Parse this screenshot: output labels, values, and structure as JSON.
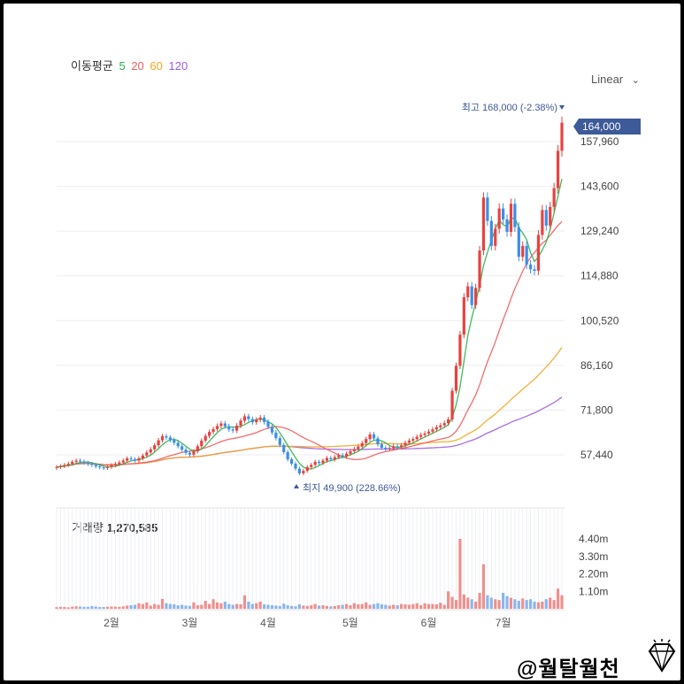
{
  "legend": {
    "label": "이동평균",
    "ma": [
      {
        "period": "5",
        "color": "#2bb24c"
      },
      {
        "period": "20",
        "color": "#f25c5c"
      },
      {
        "period": "60",
        "color": "#f5a623"
      },
      {
        "period": "120",
        "color": "#9b5de5"
      }
    ]
  },
  "scale_mode": "Linear",
  "high_label": "최고 168,000 (-2.38%)",
  "low_label": "최지 49,900 (228.66%)",
  "volume_title": {
    "label": "거래량",
    "value": "1,270,585"
  },
  "watermark": "@월탈월천",
  "colors": {
    "up": "#e8423f",
    "down": "#3b8ee8",
    "current": "#3d5a99"
  },
  "chart_data": {
    "type": "candlestick",
    "current_price": "164,000",
    "y_ticks": [
      "157,960",
      "143,600",
      "129,240",
      "114,880",
      "100,520",
      "86,160",
      "71,800",
      "57,440"
    ],
    "y_tick_values": [
      157960,
      143600,
      129240,
      114880,
      100520,
      86160,
      71800,
      57440
    ],
    "x_ticks": [
      {
        "label": "2월",
        "index": 14
      },
      {
        "label": "3월",
        "index": 34
      },
      {
        "label": "4월",
        "index": 54
      },
      {
        "label": "5월",
        "index": 75
      },
      {
        "label": "6월",
        "index": 95
      },
      {
        "label": "7월",
        "index": 114
      }
    ],
    "closes": [
      53500,
      53800,
      54200,
      54600,
      55200,
      55600,
      55300,
      54900,
      54500,
      54200,
      53700,
      53400,
      53200,
      53600,
      54100,
      54500,
      55000,
      55600,
      56300,
      56000,
      55600,
      56300,
      57200,
      58200,
      59200,
      60500,
      62100,
      63400,
      63000,
      62200,
      61300,
      60200,
      59100,
      58100,
      57500,
      58600,
      60200,
      62000,
      63500,
      64800,
      65700,
      66700,
      67500,
      66600,
      65600,
      65200,
      66800,
      68400,
      69800,
      68900,
      67900,
      68700,
      69400,
      68000,
      66400,
      64600,
      62800,
      60600,
      58300,
      56000,
      54600,
      53000,
      51500,
      52300,
      53500,
      54200,
      55200,
      54800,
      55600,
      56400,
      56000,
      56700,
      57300,
      56900,
      57800,
      58600,
      59300,
      60100,
      61200,
      62500,
      64000,
      62700,
      60800,
      59700,
      59300,
      59600,
      60200,
      59900,
      60500,
      61300,
      62000,
      62500,
      63200,
      63800,
      64300,
      64900,
      65600,
      66300,
      66900,
      67600,
      68800,
      78000,
      86000,
      96000,
      108000,
      111500,
      105500,
      111000,
      123000,
      140000,
      132500,
      124500,
      130000,
      136500,
      133000,
      129000,
      138000,
      130500,
      121000,
      124500,
      118500,
      117000,
      116500,
      128000,
      136000,
      131000,
      137000,
      143000,
      155000,
      164000
    ],
    "volume_m": [
      0.1,
      0.12,
      0.11,
      0.09,
      0.13,
      0.15,
      0.14,
      0.12,
      0.12,
      0.17,
      0.14,
      0.11,
      0.11,
      0.13,
      0.14,
      0.13,
      0.12,
      0.15,
      0.2,
      0.22,
      0.25,
      0.35,
      0.3,
      0.4,
      0.2,
      0.3,
      0.25,
      0.62,
      0.35,
      0.3,
      0.28,
      0.22,
      0.25,
      0.2,
      0.18,
      0.4,
      0.22,
      0.25,
      0.5,
      0.3,
      0.6,
      0.4,
      0.35,
      0.45,
      0.3,
      0.25,
      0.3,
      0.28,
      0.85,
      0.45,
      0.3,
      0.35,
      0.45,
      0.28,
      0.25,
      0.22,
      0.2,
      0.18,
      0.32,
      0.22,
      0.18,
      0.15,
      0.28,
      0.2,
      0.18,
      0.22,
      0.3,
      0.2,
      0.22,
      0.18,
      0.15,
      0.17,
      0.22,
      0.25,
      0.3,
      0.22,
      0.35,
      0.28,
      0.3,
      0.4,
      0.25,
      0.3,
      0.35,
      0.28,
      0.25,
      0.2,
      0.25,
      0.22,
      0.3,
      0.28,
      0.25,
      0.3,
      0.35,
      0.22,
      0.35,
      0.3,
      0.3,
      0.28,
      0.38,
      0.25,
      1.1,
      0.75,
      0.55,
      4.4,
      0.9,
      0.7,
      0.6,
      0.45,
      1.0,
      2.8,
      0.85,
      0.7,
      0.6,
      0.55,
      1.0,
      0.8,
      0.7,
      0.6,
      0.5,
      0.65,
      0.55,
      0.6,
      0.45,
      0.4,
      0.45,
      0.6,
      0.7,
      0.55,
      1.27,
      0.85
    ],
    "volume_ticks": [
      "4.40m",
      "3.30m",
      "2.20m",
      "1.10m"
    ],
    "volume_tick_values": [
      4.4,
      3.3,
      2.2,
      1.1
    ],
    "high": {
      "value": 168000,
      "index": 129
    },
    "low": {
      "value": 49900,
      "index": 63
    }
  }
}
